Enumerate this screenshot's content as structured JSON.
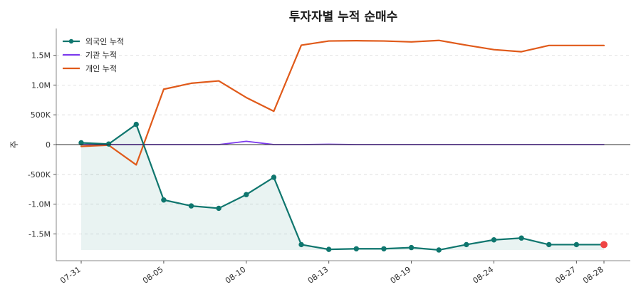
{
  "chart_data": {
    "type": "line",
    "title": "투자자별 누적 순매수",
    "ylabel": "주",
    "xlabel": "",
    "x": [
      "07-31",
      "08-01",
      "08-04",
      "08-05",
      "08-06",
      "08-07",
      "08-10",
      "08-11",
      "08-12",
      "08-13",
      "08-14",
      "08-17",
      "08-19",
      "08-20",
      "08-21",
      "08-24",
      "08-25",
      "08-26",
      "08-27",
      "08-28"
    ],
    "x_tick_labels": [
      "07-31",
      "08-05",
      "08-10",
      "08-13",
      "08-19",
      "08-24",
      "08-27",
      "08-28"
    ],
    "ylim": [
      -1950000,
      1950000
    ],
    "y_ticks": [
      -1500000,
      -1000000,
      -500000,
      0,
      500000,
      1000000,
      1500000
    ],
    "y_tick_labels": [
      "-1.5M",
      "-1.0M",
      "-500K",
      "0",
      "500K",
      "1.0M",
      "1.5M"
    ],
    "grid": "horizontal dashed",
    "legend_position": "top-left",
    "zero_line": true,
    "series": [
      {
        "name": "외국인 누적",
        "color": "#0f766e",
        "markers": true,
        "fill": true,
        "values": [
          30000,
          10000,
          340000,
          -930000,
          -1030000,
          -1070000,
          -840000,
          -550000,
          -1680000,
          -1760000,
          -1750000,
          -1750000,
          -1730000,
          -1770000,
          -1680000,
          -1600000,
          -1570000,
          -1680000,
          -1680000,
          -1680000
        ]
      },
      {
        "name": "기관 누적",
        "color": "#7c3aed",
        "markers": false,
        "fill": false,
        "values": [
          0,
          0,
          0,
          0,
          0,
          0,
          55000,
          0,
          0,
          5000,
          0,
          0,
          0,
          0,
          0,
          0,
          0,
          0,
          0,
          0
        ]
      },
      {
        "name": "개인 누적",
        "color": "#e05a1a",
        "markers": false,
        "fill": false,
        "values": [
          -30000,
          -10000,
          -340000,
          930000,
          1030000,
          1070000,
          790000,
          560000,
          1670000,
          1740000,
          1745000,
          1740000,
          1725000,
          1750000,
          1670000,
          1595000,
          1560000,
          1665000,
          1665000,
          1665000
        ]
      }
    ],
    "last_point_highlight_color": "#ef4444"
  }
}
